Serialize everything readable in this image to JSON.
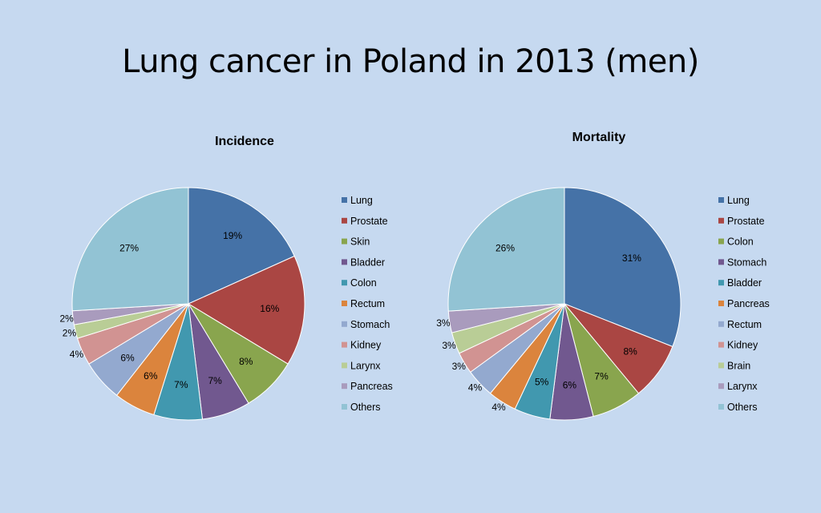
{
  "page": {
    "title": "Lung cancer in Poland in 2013 (men)"
  },
  "chart_data": [
    {
      "type": "pie",
      "title": "Incidence",
      "categories": [
        "Lung",
        "Prostate",
        "Skin",
        "Bladder",
        "Colon",
        "Rectum",
        "Stomach",
        "Kidney",
        "Larynx",
        "Pancreas",
        "Others"
      ],
      "values": [
        19,
        16,
        8,
        7,
        7,
        6,
        6,
        4,
        2,
        2,
        27
      ],
      "labels": [
        "19%",
        "16%",
        "8%",
        "7%",
        "7%",
        "6%",
        "6%",
        "4%",
        "2%",
        "2%",
        "27%"
      ],
      "colors": [
        "#4572a7",
        "#aa4643",
        "#89a54e",
        "#71588f",
        "#4198af",
        "#db843d",
        "#93a9cf",
        "#d19392",
        "#b9cd96",
        "#a99bbd",
        "#92c3d4"
      ],
      "legend": "right"
    },
    {
      "type": "pie",
      "title": "Mortality",
      "categories": [
        "Lung",
        "Prostate",
        "Colon",
        "Stomach",
        "Bladder",
        "Pancreas",
        "Rectum",
        "Kidney",
        "Brain",
        "Larynx",
        "Others"
      ],
      "values": [
        31,
        8,
        7,
        6,
        5,
        4,
        4,
        3,
        3,
        3,
        26
      ],
      "labels": [
        "31%",
        "8%",
        "7%",
        "6%",
        "5%",
        "4%",
        "4%",
        "3%",
        "3%",
        "3%",
        "26%"
      ],
      "colors": [
        "#4572a7",
        "#aa4643",
        "#89a54e",
        "#71588f",
        "#4198af",
        "#db843d",
        "#93a9cf",
        "#d19392",
        "#b9cd96",
        "#a99bbd",
        "#92c3d4"
      ],
      "legend": "right"
    }
  ]
}
